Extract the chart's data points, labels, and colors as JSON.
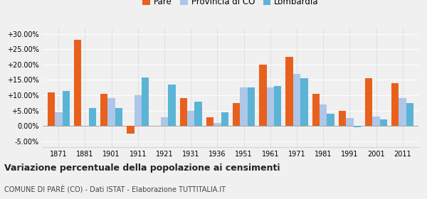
{
  "years": [
    1871,
    1881,
    1901,
    1911,
    1921,
    1931,
    1936,
    1951,
    1961,
    1971,
    1981,
    1991,
    2001,
    2011
  ],
  "pare": [
    11.0,
    28.0,
    10.5,
    -2.5,
    null,
    9.0,
    2.8,
    7.5,
    20.0,
    22.5,
    10.5,
    4.8,
    15.5,
    14.0
  ],
  "provincia_co": [
    4.5,
    null,
    9.0,
    10.0,
    2.8,
    5.0,
    1.0,
    12.5,
    12.5,
    17.0,
    7.0,
    2.5,
    3.0,
    9.0
  ],
  "lombardia": [
    11.5,
    5.8,
    5.8,
    15.7,
    13.5,
    8.0,
    4.5,
    12.5,
    13.0,
    15.5,
    4.0,
    -0.5,
    2.0,
    7.5
  ],
  "color_pare": "#e8601c",
  "color_provincia": "#aec6e8",
  "color_lombardia": "#5ab4d6",
  "title": "Variazione percentuale della popolazione ai censimenti",
  "subtitle": "COMUNE DI PARÈ (CO) - Dati ISTAT - Elaborazione TUTTITALIA.IT",
  "legend_labels": [
    "Parè",
    "Provincia di CO",
    "Lombardia"
  ],
  "ylim": [
    -7,
    32
  ],
  "yticks": [
    -5.0,
    0.0,
    5.0,
    10.0,
    15.0,
    20.0,
    25.0,
    30.0
  ],
  "bar_width": 0.28,
  "background_color": "#f0f0f0"
}
